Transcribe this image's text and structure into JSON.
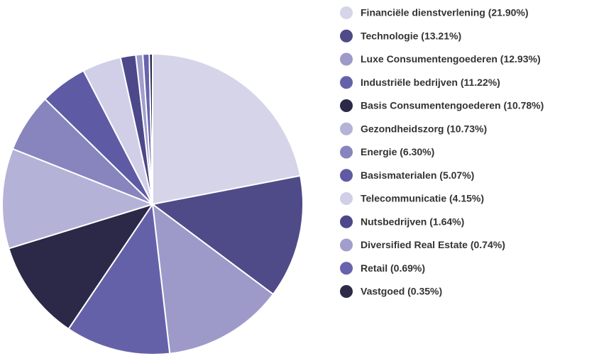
{
  "chart_data": {
    "type": "pie",
    "categories": [
      "Financiële dienstverlening (21.90%)",
      "Technologie (13.21%)",
      "Luxe Consumentengoederen (12.93%)",
      "Industriële bedrijven (11.22%)",
      "Basis Consumentengoederen (10.78%)",
      "Gezondheidszorg (10.73%)",
      "Energie (6.30%)",
      "Basismaterialen (5.07%)",
      "Telecommunicatie (4.15%)",
      "Nutsbedrijven (1.64%)",
      "Diversified Real Estate (0.74%)",
      "Retail (0.69%)",
      "Vastgoed (0.35%)"
    ],
    "values": [
      21.9,
      13.21,
      12.93,
      11.22,
      10.78,
      10.73,
      6.3,
      5.07,
      4.15,
      1.64,
      0.74,
      0.69,
      0.35
    ],
    "colors": [
      "#d5d4e9",
      "#4f4b88",
      "#9d9aca",
      "#6561a9",
      "#2b2947",
      "#b4b2d7",
      "#8784be",
      "#5e5aa4",
      "#d0cfe7",
      "#4c4889",
      "#a19ecd",
      "#6763ae",
      "#2c2a48"
    ]
  }
}
